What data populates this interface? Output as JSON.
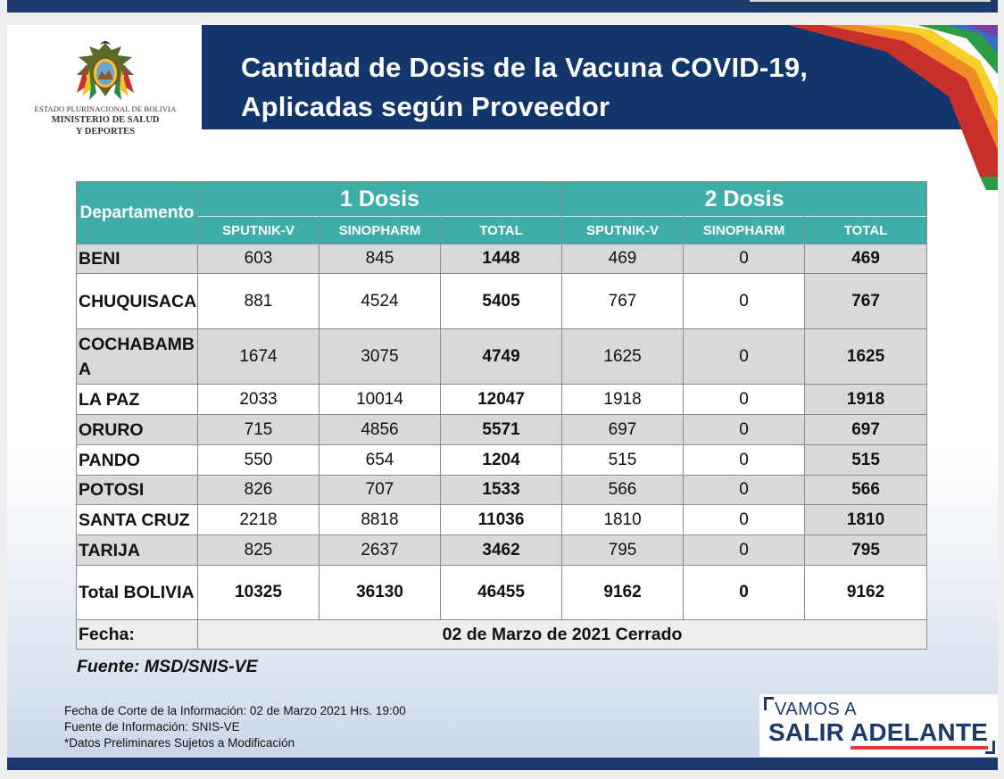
{
  "header": {
    "logo_line1": "ESTADO PLURINACIONAL DE BOLIVIA",
    "logo_line2": "MINISTERIO DE SALUD",
    "logo_line3": "Y DEPORTES",
    "title": "Cantidad de Dosis de la Vacuna COVID-19, Aplicadas según Proveedor"
  },
  "table": {
    "dept_header": "Departamento",
    "group1": "1 Dosis",
    "group2": "2 Dosis",
    "subheaders": [
      "SPUTNIK-V",
      "SINOPHARM",
      "TOTAL",
      "SPUTNIK-V",
      "SINOPHARM",
      "TOTAL"
    ],
    "rows": [
      {
        "name": "BENI",
        "d1_sputnik": "603",
        "d1_sinopharm": "845",
        "d1_total": "1448",
        "d2_sputnik": "469",
        "d2_sinopharm": "0",
        "d2_total": "469"
      },
      {
        "name": "CHUQUISACA",
        "d1_sputnik": "881",
        "d1_sinopharm": "4524",
        "d1_total": "5405",
        "d2_sputnik": "767",
        "d2_sinopharm": "0",
        "d2_total": "767"
      },
      {
        "name": "COCHABAMBA",
        "d1_sputnik": "1674",
        "d1_sinopharm": "3075",
        "d1_total": "4749",
        "d2_sputnik": "1625",
        "d2_sinopharm": "0",
        "d2_total": "1625"
      },
      {
        "name": "LA PAZ",
        "d1_sputnik": "2033",
        "d1_sinopharm": "10014",
        "d1_total": "12047",
        "d2_sputnik": "1918",
        "d2_sinopharm": "0",
        "d2_total": "1918"
      },
      {
        "name": "ORURO",
        "d1_sputnik": "715",
        "d1_sinopharm": "4856",
        "d1_total": "5571",
        "d2_sputnik": "697",
        "d2_sinopharm": "0",
        "d2_total": "697"
      },
      {
        "name": "PANDO",
        "d1_sputnik": "550",
        "d1_sinopharm": "654",
        "d1_total": "1204",
        "d2_sputnik": "515",
        "d2_sinopharm": "0",
        "d2_total": "515"
      },
      {
        "name": "POTOSI",
        "d1_sputnik": "826",
        "d1_sinopharm": "707",
        "d1_total": "1533",
        "d2_sputnik": "566",
        "d2_sinopharm": "0",
        "d2_total": "566"
      },
      {
        "name": "SANTA CRUZ",
        "d1_sputnik": "2218",
        "d1_sinopharm": "8818",
        "d1_total": "11036",
        "d2_sputnik": "1810",
        "d2_sinopharm": "0",
        "d2_total": "1810"
      },
      {
        "name": "TARIJA",
        "d1_sputnik": "825",
        "d1_sinopharm": "2637",
        "d1_total": "3462",
        "d2_sputnik": "795",
        "d2_sinopharm": "0",
        "d2_total": "795"
      }
    ],
    "total_row": {
      "name": "Total BOLIVIA",
      "d1_sputnik": "10325",
      "d1_sinopharm": "36130",
      "d1_total": "46455",
      "d2_sputnik": "9162",
      "d2_sinopharm": "0",
      "d2_total": "9162"
    },
    "fecha_label": "Fecha:",
    "fecha_value": "02 de Marzo de 2021 Cerrado"
  },
  "fuente": "Fuente: MSD/SNIS-VE",
  "notes": [
    "Fecha de Corte de la Información: 02 de Marzo 2021 Hrs. 19:00",
    "Fuente de Información: SNIS-VE",
    "*Datos Preliminares Sujetos a Modificación"
  ],
  "brand": {
    "line1": "VAMOS A",
    "line2_left": "SALIR ",
    "line2_right": "ADELANTE"
  },
  "colors": {
    "title_band": "#12366b",
    "table_header": "#3fada8",
    "row_shade": "#d9d9d9"
  }
}
